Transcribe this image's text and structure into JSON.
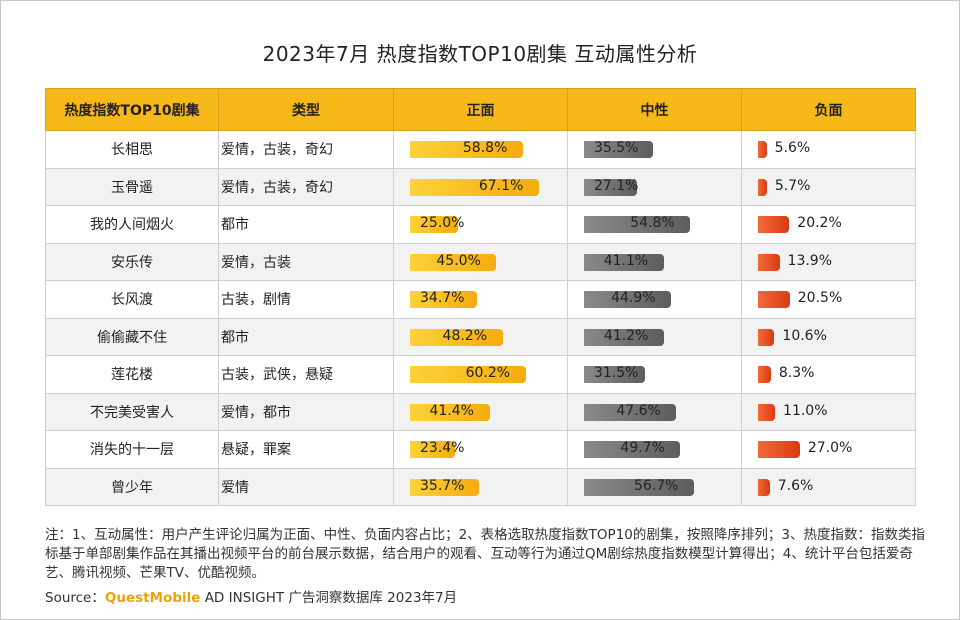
{
  "title": "2023年7月 热度指数TOP10剧集 互动属性分析",
  "colors": {
    "header": "#f7b81a",
    "positive": "#f5ab0c",
    "neutral": "#6e6e6e",
    "negative": "#e34a1d",
    "brand": "#f0a20a"
  },
  "chart_data": {
    "type": "table",
    "title": "2023年7月 热度指数TOP10剧集 互动属性分析",
    "columns": [
      "热度指数TOP10剧集",
      "类型",
      "正面",
      "中性",
      "负面"
    ],
    "unit": "%",
    "rows": [
      {
        "name": "长相思",
        "genre": "爱情，古装，奇幻",
        "positive": 58.8,
        "neutral": 35.5,
        "negative": 5.6,
        "positive_label": "58.8%",
        "neutral_label": "35.5%",
        "negative_label": "5.6%"
      },
      {
        "name": "玉骨遥",
        "genre": "爱情，古装，奇幻",
        "positive": 67.1,
        "neutral": 27.1,
        "negative": 5.7,
        "positive_label": "67.1%",
        "neutral_label": "27.1%",
        "negative_label": "5.7%"
      },
      {
        "name": "我的人间烟火",
        "genre": "都市",
        "positive": 25.0,
        "neutral": 54.8,
        "negative": 20.2,
        "positive_label": "25.0%",
        "neutral_label": "54.8%",
        "negative_label": "20.2%"
      },
      {
        "name": "安乐传",
        "genre": "爱情，古装",
        "positive": 45.0,
        "neutral": 41.1,
        "negative": 13.9,
        "positive_label": "45.0%",
        "neutral_label": "41.1%",
        "negative_label": "13.9%"
      },
      {
        "name": "长风渡",
        "genre": "古装，剧情",
        "positive": 34.7,
        "neutral": 44.9,
        "negative": 20.5,
        "positive_label": "34.7%",
        "neutral_label": "44.9%",
        "negative_label": "20.5%"
      },
      {
        "name": "偷偷藏不住",
        "genre": "都市",
        "positive": 48.2,
        "neutral": 41.2,
        "negative": 10.6,
        "positive_label": "48.2%",
        "neutral_label": "41.2%",
        "negative_label": "10.6%"
      },
      {
        "name": "莲花楼",
        "genre": "古装，武侠，悬疑",
        "positive": 60.2,
        "neutral": 31.5,
        "negative": 8.3,
        "positive_label": "60.2%",
        "neutral_label": "31.5%",
        "negative_label": "8.3%"
      },
      {
        "name": "不完美受害人",
        "genre": "爱情，都市",
        "positive": 41.4,
        "neutral": 47.6,
        "negative": 11.0,
        "positive_label": "41.4%",
        "neutral_label": "47.6%",
        "negative_label": "11.0%"
      },
      {
        "name": "消失的十一层",
        "genre": "悬疑，罪案",
        "positive": 23.4,
        "neutral": 49.7,
        "negative": 27.0,
        "positive_label": "23.4%",
        "neutral_label": "49.7%",
        "negative_label": "27.0%"
      },
      {
        "name": "曾少年",
        "genre": "爱情",
        "positive": 35.7,
        "neutral": 56.7,
        "negative": 7.6,
        "positive_label": "35.7%",
        "neutral_label": "56.7%",
        "negative_label": "7.6%"
      }
    ]
  },
  "note": "注：1、互动属性：用户产生评论归属为正面、中性、负面内容占比；2、表格选取热度指数TOP10的剧集，按照降序排列；3、热度指数：指数类指标基于单部剧集作品在其播出视频平台的前台展示数据，结合用户的观看、互动等行为通过QM剧综热度指数模型计算得出；4、统计平台包括爱奇艺、腾讯视频、芒果TV、优酷视频。",
  "source": {
    "prefix": "Source：",
    "brand": "QuestMobile",
    "text": "AD INSIGHT 广告洞察数据库 2023年7月"
  }
}
